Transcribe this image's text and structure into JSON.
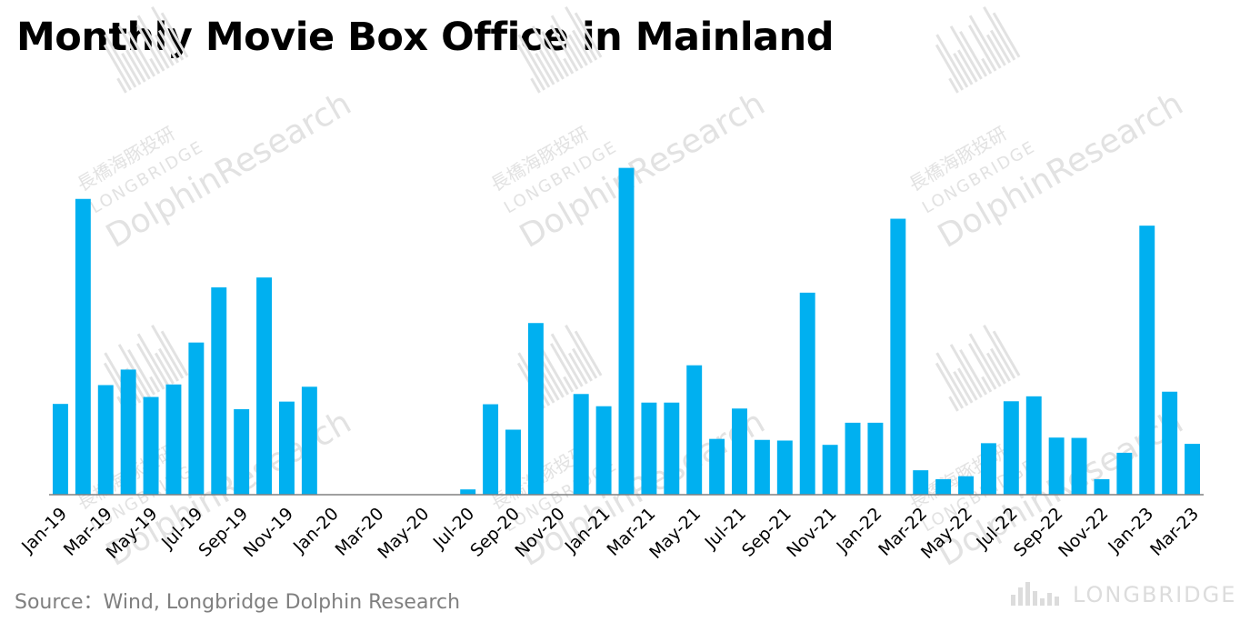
{
  "title": "Monthly Movie Box Office in Mainland",
  "source": "Source：Wind, Longbridge Dolphin Research",
  "watermark": {
    "cn": "長橋海豚投研",
    "en": "LONGBRIDGE",
    "brand": "DolphinResearch",
    "logo_text": "LONGBRIDGE"
  },
  "colors": {
    "bar": "#00b0f0",
    "axis": "#808080",
    "watermark": "#e2e2e2"
  },
  "chart_data": {
    "type": "bar",
    "title": "Monthly Movie Box Office in Mainland",
    "xlabel": "",
    "ylabel": "",
    "y_axis_visible": false,
    "grid": false,
    "ylim": [
      0,
      100
    ],
    "tick_every": 2,
    "categories": [
      "Jan-19",
      "Feb-19",
      "Mar-19",
      "Apr-19",
      "May-19",
      "Jun-19",
      "Jul-19",
      "Aug-19",
      "Sep-19",
      "Oct-19",
      "Nov-19",
      "Dec-19",
      "Jan-20",
      "Feb-20",
      "Mar-20",
      "Apr-20",
      "May-20",
      "Jun-20",
      "Jul-20",
      "Aug-20",
      "Sep-20",
      "Oct-20",
      "Nov-20",
      "Dec-20",
      "Jan-21",
      "Feb-21",
      "Mar-21",
      "Apr-21",
      "May-21",
      "Jun-21",
      "Jul-21",
      "Aug-21",
      "Sep-21",
      "Oct-21",
      "Nov-21",
      "Dec-21",
      "Jan-22",
      "Feb-22",
      "Mar-22",
      "Apr-22",
      "May-22",
      "Jun-22",
      "Jul-22",
      "Aug-22",
      "Sep-22",
      "Oct-22",
      "Nov-22",
      "Dec-22",
      "Jan-23",
      "Feb-23",
      "Mar-23"
    ],
    "values": [
      27.5,
      89.6,
      33.2,
      37.9,
      29.6,
      33.4,
      46.1,
      62.8,
      25.9,
      65.8,
      28.2,
      32.7,
      0,
      0,
      0,
      0,
      0,
      0,
      1.6,
      27.4,
      19.7,
      52.0,
      0,
      30.5,
      26.8,
      99.0,
      27.9,
      27.9,
      39.2,
      16.9,
      26.1,
      16.6,
      16.4,
      61.2,
      15.1,
      21.8,
      21.8,
      83.6,
      7.4,
      4.7,
      5.6,
      15.6,
      28.3,
      29.8,
      17.3,
      17.2,
      4.7,
      12.7,
      81.5,
      31.2,
      15.4
    ]
  }
}
